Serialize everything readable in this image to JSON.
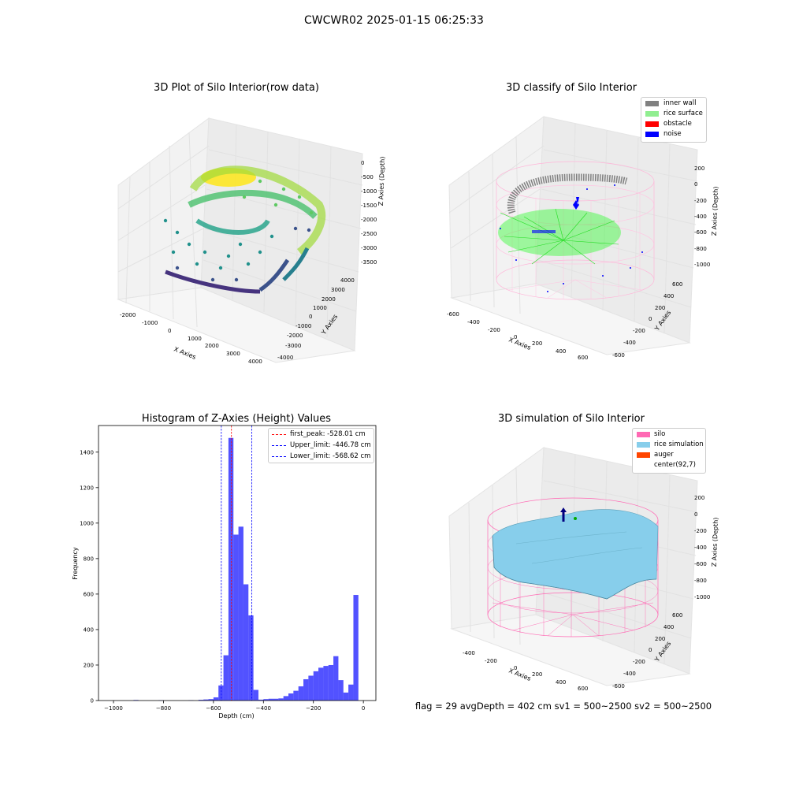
{
  "suptitle": "CWCWR02 2025-01-15 06:25:33",
  "panels": {
    "raw": {
      "title": "3D Plot of Silo Interior(row data)",
      "xlabel": "X Axies",
      "ylabel": "Y Axies",
      "zlabel": "Z Axies (Depth)",
      "xticks": [
        "-2000",
        "-1000",
        "0",
        "1000",
        "2000",
        "3000",
        "4000"
      ],
      "yticks": [
        "4000",
        "3000",
        "2000",
        "1000",
        "0",
        "-1000",
        "-2000",
        "-3000",
        "-4000"
      ],
      "zticks": [
        "0",
        "-500",
        "-1000",
        "-1500",
        "-2000",
        "-2500",
        "-3000",
        "-3500"
      ],
      "colormap": "viridis"
    },
    "classify": {
      "title": "3D classify of Silo Interior",
      "xlabel": "X Axies",
      "ylabel": "Y Axies",
      "zlabel": "Z Axies (Depth)",
      "xticks": [
        "-600",
        "-400",
        "-200",
        "0",
        "200",
        "400",
        "600"
      ],
      "yticks": [
        "600",
        "400",
        "200",
        "0",
        "-200",
        "-400",
        "-600"
      ],
      "zticks": [
        "200",
        "0",
        "-200",
        "-400",
        "-600",
        "-800",
        "-1000"
      ],
      "legend": [
        {
          "label": "inner wall",
          "color": "#808080"
        },
        {
          "label": "rice surface",
          "color": "#90ee90"
        },
        {
          "label": "obstacle",
          "color": "#ff0000"
        },
        {
          "label": "noise",
          "color": "#0000ff"
        }
      ],
      "wire_color": "#ffb6d9"
    },
    "simulation": {
      "title": "3D simulation of Silo Interior",
      "xlabel": "X Axies",
      "ylabel": "Y Axies",
      "zlabel": "Z Axies (Depth)",
      "xticks": [
        "-400",
        "-200",
        "0",
        "200",
        "400",
        "600"
      ],
      "yticks": [
        "600",
        "400",
        "200",
        "0",
        "-200",
        "-400",
        "-600"
      ],
      "zticks": [
        "200",
        "0",
        "-200",
        "-400",
        "-600",
        "-800",
        "-1000"
      ],
      "legend": [
        {
          "label": "silo",
          "color": "#ff69b4"
        },
        {
          "label": "rice simulation",
          "color": "#87ceeb"
        },
        {
          "label": "auger",
          "color": "#ff4500"
        },
        {
          "label": "center(92,7)",
          "color": "#ffffff"
        }
      ]
    }
  },
  "info": "flag = 29  avgDepth = 402 cm  sv1 = 500~2500  sv2 = 500~2500",
  "chart_data": {
    "type": "bar",
    "title": "Histogram of Z-Axies (Height) Values",
    "xlabel": "Depth (cm)",
    "ylabel": "Frequency",
    "xlim": [
      -1060,
      50
    ],
    "ylim": [
      0,
      1550
    ],
    "xticks": [
      -1000,
      -800,
      -600,
      -400,
      -200,
      0
    ],
    "yticks": [
      0,
      200,
      400,
      600,
      800,
      1000,
      1200,
      1400
    ],
    "bin_width": 20,
    "bar_color": "#0000ff",
    "bins": [
      [
        -920,
        3
      ],
      [
        -820,
        2
      ],
      [
        -700,
        2
      ],
      [
        -660,
        4
      ],
      [
        -640,
        6
      ],
      [
        -620,
        8
      ],
      [
        -600,
        18
      ],
      [
        -580,
        85
      ],
      [
        -560,
        255
      ],
      [
        -540,
        1480
      ],
      [
        -520,
        935
      ],
      [
        -500,
        980
      ],
      [
        -480,
        655
      ],
      [
        -460,
        480
      ],
      [
        -440,
        60
      ],
      [
        -420,
        5
      ],
      [
        -400,
        8
      ],
      [
        -380,
        10
      ],
      [
        -360,
        10
      ],
      [
        -340,
        12
      ],
      [
        -320,
        25
      ],
      [
        -300,
        40
      ],
      [
        -280,
        55
      ],
      [
        -260,
        80
      ],
      [
        -240,
        120
      ],
      [
        -220,
        140
      ],
      [
        -200,
        165
      ],
      [
        -180,
        185
      ],
      [
        -160,
        195
      ],
      [
        -140,
        200
      ],
      [
        -120,
        250
      ],
      [
        -100,
        115
      ],
      [
        -80,
        45
      ],
      [
        -60,
        90
      ],
      [
        -40,
        595
      ]
    ],
    "lines": [
      {
        "label": "first_peak: -528.01 cm",
        "value": -528.01,
        "color": "#ff0000"
      },
      {
        "label": "Upper_limit: -446.78 cm",
        "value": -446.78,
        "color": "#0000ff"
      },
      {
        "label": "Lower_limit: -568.62 cm",
        "value": -568.62,
        "color": "#0000ff"
      }
    ]
  }
}
